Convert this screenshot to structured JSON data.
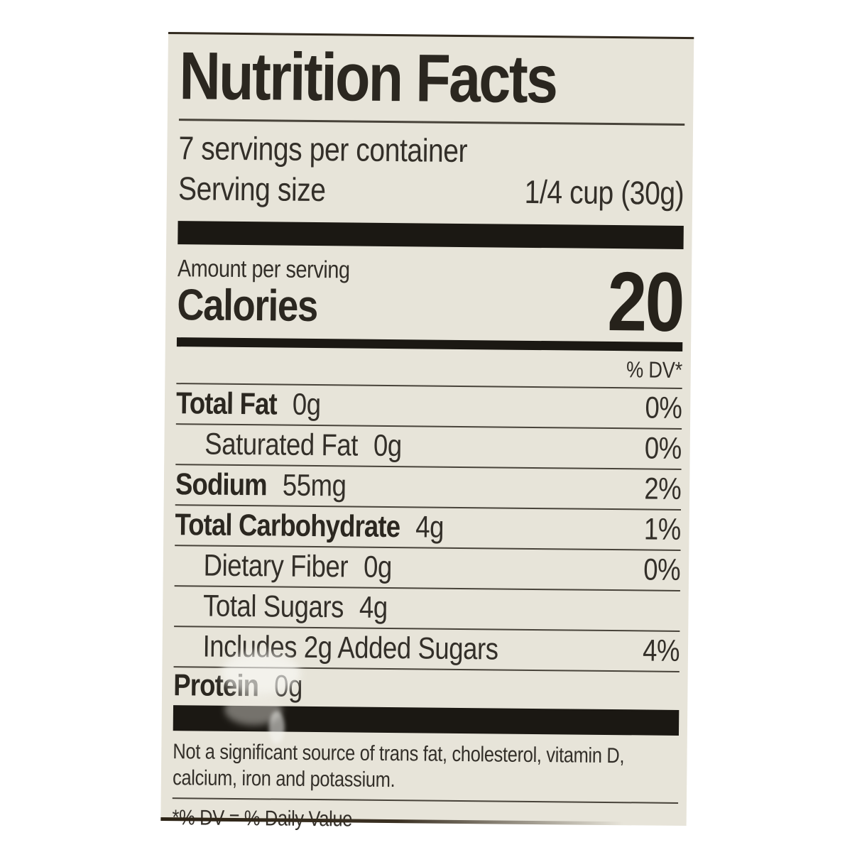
{
  "label": {
    "title": "Nutrition Facts",
    "servings_per_container": "7 servings per container",
    "serving_size_label": "Serving size",
    "serving_size_value": "1/4 cup (30g)",
    "amount_per_serving": "Amount per serving",
    "calories_label": "Calories",
    "calories_value": "20",
    "dv_header": "% DV*",
    "rows": [
      {
        "name": "Total Fat",
        "amount": "0g",
        "dv": "0%"
      },
      {
        "name": "Saturated Fat",
        "amount": "0g",
        "dv": "0%"
      },
      {
        "name": "Sodium",
        "amount": "55mg",
        "dv": "2%"
      },
      {
        "name": "Total Carbohydrate",
        "amount": "4g",
        "dv": "1%"
      },
      {
        "name": "Dietary Fiber",
        "amount": "0g",
        "dv": "0%"
      },
      {
        "name": "Total Sugars",
        "amount": "4g",
        "dv": ""
      },
      {
        "name": "Includes 2g Added Sugars",
        "amount": "",
        "dv": "4%"
      },
      {
        "name": "Protein",
        "amount": "0g",
        "dv": ""
      }
    ],
    "footnote": "Not a significant source of trans fat, cholesterol, vitamin D, calcium, iron and potassium.",
    "dv_note": "*% DV = % Daily Value",
    "colors": {
      "label_bg": "#e7e4d9",
      "ink": "#332f29",
      "bar": "#1b1813"
    }
  }
}
